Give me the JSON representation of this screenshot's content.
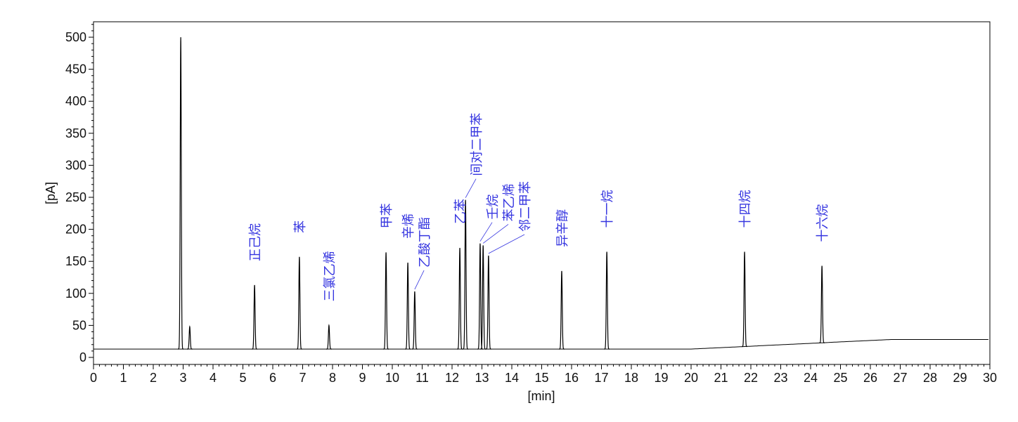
{
  "chart_data": {
    "type": "line",
    "xlabel": "[min]",
    "ylabel": "[pA]",
    "xlim": [
      0,
      30
    ],
    "ylim": [
      -5,
      525
    ],
    "x_ticks": [
      0,
      1,
      2,
      3,
      4,
      5,
      6,
      7,
      8,
      9,
      10,
      11,
      12,
      13,
      14,
      15,
      16,
      17,
      18,
      19,
      20,
      21,
      22,
      23,
      24,
      25,
      26,
      27,
      28,
      29,
      30
    ],
    "y_ticks": [
      0,
      50,
      100,
      150,
      200,
      250,
      300,
      350,
      400,
      450,
      500
    ],
    "grid": false,
    "legend": "none",
    "trace_color": "#000000",
    "label_color": "#3535e0",
    "baseline": [
      [
        0,
        13
      ],
      [
        20,
        13
      ],
      [
        26.7,
        28
      ],
      [
        30,
        28
      ]
    ],
    "peaks": [
      {
        "rt": 2.92,
        "height": 500,
        "label": ""
      },
      {
        "rt": 3.22,
        "height": 48,
        "label": ""
      },
      {
        "rt": 5.39,
        "height": 113,
        "label": "正己烷"
      },
      {
        "rt": 6.89,
        "height": 157,
        "label": "苯"
      },
      {
        "rt": 7.88,
        "height": 50,
        "label": "三氯乙烯"
      },
      {
        "rt": 9.79,
        "height": 164,
        "label": "甲苯"
      },
      {
        "rt": 10.52,
        "height": 148,
        "label": "辛烯"
      },
      {
        "rt": 10.75,
        "height": 103,
        "label": "乙酸丁酯"
      },
      {
        "rt": 12.26,
        "height": 171,
        "label": "乙苯"
      },
      {
        "rt": 12.45,
        "height": 246,
        "label": "间对二甲苯"
      },
      {
        "rt": 12.94,
        "height": 178,
        "label": "壬烷"
      },
      {
        "rt": 13.04,
        "height": 175,
        "label": "苯乙烯"
      },
      {
        "rt": 13.22,
        "height": 159,
        "label": "邻二甲苯"
      },
      {
        "rt": 15.67,
        "height": 135,
        "label": "异辛醇"
      },
      {
        "rt": 17.18,
        "height": 165,
        "label": "十一烷"
      },
      {
        "rt": 21.79,
        "height": 165,
        "label": "十四烷"
      },
      {
        "rt": 24.38,
        "height": 143,
        "label": "十六烷"
      }
    ]
  }
}
